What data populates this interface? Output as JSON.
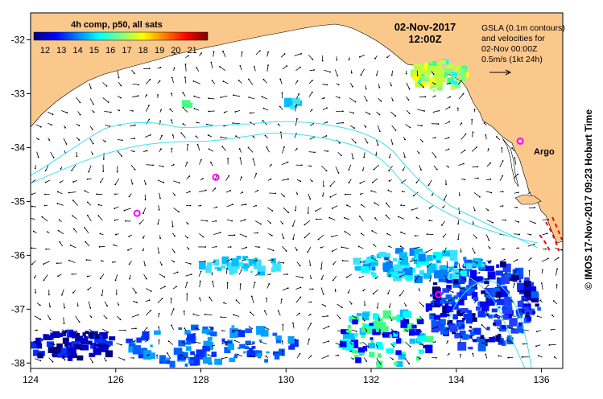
{
  "map": {
    "legend": {
      "title": "4h comp, p50, all sats",
      "ticks": [
        "12",
        "13",
        "14",
        "15",
        "16",
        "17",
        "18",
        "19",
        "20",
        "21"
      ],
      "colors": [
        "#00007f",
        "#0000ff",
        "#0080ff",
        "#00ffff",
        "#80ff80",
        "#ffff00",
        "#ff8000",
        "#ff0000",
        "#800000"
      ]
    },
    "date": "02-Nov-2017",
    "time": "12:00Z",
    "info_lines": [
      "GSLA (0.1m contours)",
      "and velocities for",
      "02-Nov 00:00Z",
      "0.5m/s (1kt 24h)"
    ],
    "argo_label": "Argo",
    "credit": "© IMOS 17-Nov-2017 09:23 Hobart Time",
    "x_ticks": [
      "124",
      "126",
      "128",
      "130",
      "132",
      "134",
      "136"
    ],
    "y_ticks": [
      "-32",
      "-33",
      "-34",
      "-35",
      "-36",
      "-37",
      "-38"
    ],
    "colors": {
      "land": "#fbc88c",
      "ocean": "#ffffff",
      "contour": "#40e0f0",
      "argo": "#ff00ff",
      "arrow": "#000000",
      "red_contour": "#ff0000"
    },
    "argo_floats": [
      {
        "lon": 126.5,
        "lat": -35.22
      },
      {
        "lon": 128.35,
        "lat": -34.55
      },
      {
        "lon": 133.58,
        "lat": -36.73
      },
      {
        "lon": 135.5,
        "lat": -33.88
      }
    ]
  }
}
